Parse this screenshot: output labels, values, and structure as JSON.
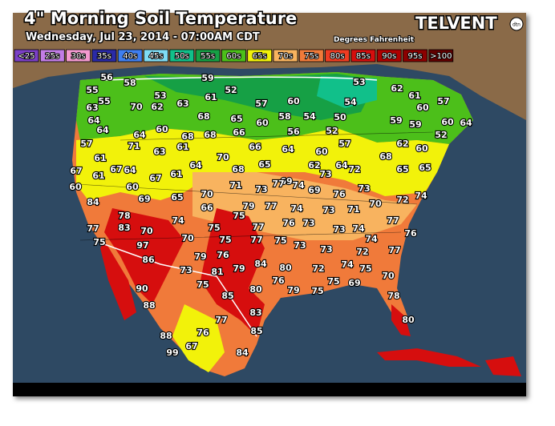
{
  "header": {
    "title": "4\" Morning Soil Temperature",
    "subtitle": "Wednesday, Jul 23, 2014 - 07:00AM CDT",
    "units": "Degrees Fahrenheit",
    "brand": "TELVENT",
    "brand_mark": "dtn"
  },
  "legend": [
    {
      "label": "<25",
      "color": "#7b3fc6"
    },
    {
      "label": "25s",
      "color": "#c27de6"
    },
    {
      "label": "30s",
      "color": "#f59ad0"
    },
    {
      "label": "35s",
      "color": "#2a2aa8"
    },
    {
      "label": "40s",
      "color": "#3f7ff0"
    },
    {
      "label": "45s",
      "color": "#7fdcf5"
    },
    {
      "label": "50s",
      "color": "#11c08a"
    },
    {
      "label": "55s",
      "color": "#16a045"
    },
    {
      "label": "60s",
      "color": "#4cbf1a"
    },
    {
      "label": "65s",
      "color": "#f2f20a"
    },
    {
      "label": "70s",
      "color": "#f8b35f"
    },
    {
      "label": "75s",
      "color": "#f07a3a"
    },
    {
      "label": "80s",
      "color": "#f03c22"
    },
    {
      "label": "85s",
      "color": "#d60e0e"
    },
    {
      "label": "90s",
      "color": "#b00000"
    },
    {
      "label": "95s",
      "color": "#8c0000"
    },
    {
      "label": ">100",
      "color": "#600000"
    }
  ],
  "stations": [
    56,
    58,
    59,
    52,
    53,
    62,
    61,
    57,
    55,
    55,
    53,
    61,
    57,
    60,
    54,
    60,
    63,
    70,
    62,
    63,
    68,
    65,
    60,
    58,
    54,
    50,
    59,
    59,
    60,
    64,
    64,
    64,
    60,
    68,
    68,
    66,
    56,
    52,
    64,
    52,
    57,
    71,
    63,
    61,
    66,
    64,
    60,
    57,
    62,
    60,
    68,
    61,
    64,
    70,
    65,
    62,
    64,
    72,
    65,
    65,
    67,
    61,
    67,
    64,
    67,
    61,
    68,
    73,
    69,
    60,
    60,
    71,
    73,
    77,
    74,
    69,
    76,
    73,
    72,
    74,
    84,
    69,
    65,
    70,
    66,
    79,
    77,
    74,
    73,
    71,
    70,
    75,
    76,
    73,
    77,
    78,
    77,
    83,
    70,
    74,
    77,
    73,
    74,
    70,
    75,
    75,
    97,
    75,
    77,
    75,
    73,
    73,
    74,
    76,
    77,
    72,
    86,
    79,
    76,
    84,
    81,
    79,
    80,
    72,
    74,
    75,
    73,
    76,
    75,
    69,
    70,
    79,
    75,
    90,
    75,
    80,
    85,
    78,
    88,
    83,
    77,
    80,
    85,
    76,
    88,
    67,
    84,
    99
  ]
}
